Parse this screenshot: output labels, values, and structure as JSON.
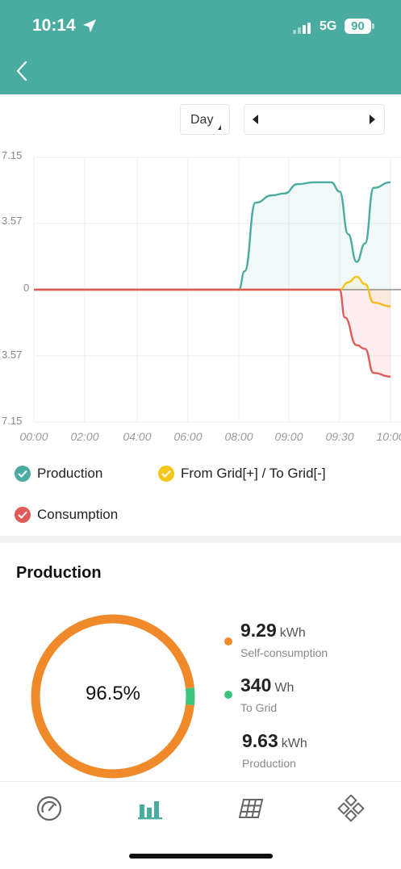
{
  "status_bar": {
    "time": "10:14",
    "network": "5G",
    "battery": "90"
  },
  "header": {
    "back_icon": "chevron-left-icon",
    "color": "#4aaca0"
  },
  "controls": {
    "period": "Day"
  },
  "chart_data": {
    "type": "area",
    "x_ticks": [
      "00:00",
      "02:00",
      "04:00",
      "06:00",
      "08:00",
      "09:00",
      "09:30",
      "10:00"
    ],
    "y_ticks": [
      "7.15",
      "3.57",
      "0",
      "3.57",
      "7.15"
    ],
    "ylim": [
      -7.15,
      7.15
    ],
    "grid": true,
    "legend_position": "bottom",
    "series": [
      {
        "name": "Production",
        "color": "#4aaca0",
        "points": [
          [
            "00:00",
            0
          ],
          [
            "08:00",
            0
          ],
          [
            "08:07",
            1.0
          ],
          [
            "08:20",
            4.7
          ],
          [
            "08:40",
            5.1
          ],
          [
            "08:55",
            5.2
          ],
          [
            "09:05",
            5.7
          ],
          [
            "09:15",
            5.8
          ],
          [
            "09:25",
            5.8
          ],
          [
            "09:30",
            5.3
          ],
          [
            "09:35",
            3.0
          ],
          [
            "09:40",
            1.5
          ],
          [
            "09:45",
            2.5
          ],
          [
            "09:50",
            5.5
          ],
          [
            "10:00",
            5.8
          ]
        ]
      },
      {
        "name": "From Grid[+] / To Grid[-]",
        "color": "#f5c518",
        "points": [
          [
            "00:00",
            0
          ],
          [
            "09:30",
            0
          ],
          [
            "09:35",
            0.4
          ],
          [
            "09:40",
            0.7
          ],
          [
            "09:45",
            0.3
          ],
          [
            "09:50",
            -0.7
          ],
          [
            "10:00",
            -0.9
          ]
        ]
      },
      {
        "name": "Consumption",
        "color": "#e05a5a",
        "points": [
          [
            "00:00",
            0
          ],
          [
            "09:30",
            0
          ],
          [
            "09:33",
            -1.5
          ],
          [
            "09:40",
            -3.0
          ],
          [
            "09:45",
            -3.2
          ],
          [
            "09:50",
            -4.5
          ],
          [
            "10:00",
            -4.7
          ]
        ]
      }
    ]
  },
  "legend": [
    {
      "label": "Production",
      "color": "#4aaca0"
    },
    {
      "label": "From Grid[+] / To Grid[-]",
      "color": "#f5c518"
    },
    {
      "label": "Consumption",
      "color": "#e05a5a"
    }
  ],
  "production": {
    "title": "Production",
    "percent_label": "96.5%",
    "self_consumption_fraction": 0.965,
    "stats": [
      {
        "value": "9.29",
        "unit": "kWh",
        "label": "Self-consumption",
        "dot_color": "#f0892a"
      },
      {
        "value": "340",
        "unit": "Wh",
        "label": "To Grid",
        "dot_color": "#3cc47c"
      },
      {
        "value": "9.63",
        "unit": "kWh",
        "label": "Production"
      }
    ]
  },
  "tabbar": {
    "tabs": [
      {
        "icon": "gauge-icon",
        "active": false
      },
      {
        "icon": "bar-chart-icon",
        "active": true
      },
      {
        "icon": "solar-panel-icon",
        "active": false
      },
      {
        "icon": "devices-grid-icon",
        "active": false
      }
    ]
  }
}
